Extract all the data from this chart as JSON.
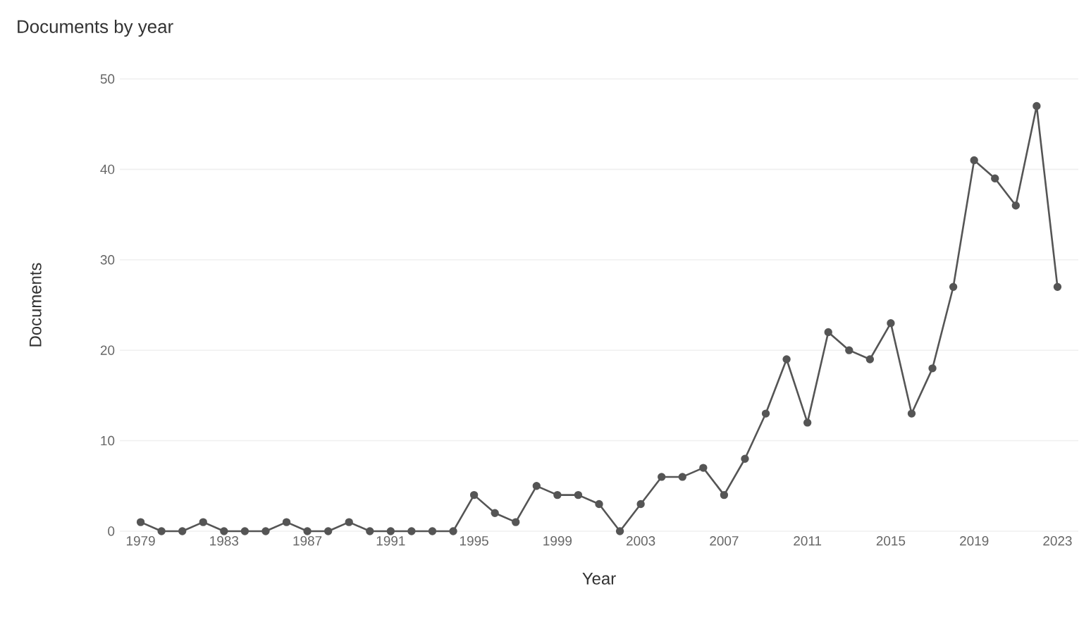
{
  "chart_data": {
    "type": "line",
    "title": "Documents by year",
    "xlabel": "Year",
    "ylabel": "Documents",
    "x": [
      1979,
      1980,
      1981,
      1982,
      1983,
      1984,
      1985,
      1986,
      1987,
      1988,
      1989,
      1990,
      1991,
      1992,
      1993,
      1994,
      1995,
      1996,
      1997,
      1998,
      1999,
      2000,
      2001,
      2002,
      2003,
      2004,
      2005,
      2006,
      2007,
      2008,
      2009,
      2010,
      2011,
      2012,
      2013,
      2014,
      2015,
      2016,
      2017,
      2018,
      2019,
      2020,
      2021,
      2022,
      2023
    ],
    "series": [
      {
        "color": "#555555",
        "values": [
          1,
          0,
          0,
          1,
          0,
          0,
          0,
          1,
          0,
          0,
          1,
          0,
          0,
          0,
          0,
          0,
          4,
          2,
          1,
          5,
          4,
          4,
          3,
          0,
          3,
          6,
          6,
          7,
          4,
          8,
          13,
          19,
          12,
          22,
          20,
          19,
          23,
          13,
          18,
          27,
          41,
          39,
          36,
          47,
          27
        ]
      }
    ],
    "xlim": [
      1978,
      2024
    ],
    "ylim": [
      0,
      50
    ],
    "xticks": [
      1979,
      1983,
      1987,
      1991,
      1995,
      1999,
      2003,
      2007,
      2011,
      2015,
      2019,
      2023
    ],
    "yticks": [
      0,
      10,
      20,
      30,
      40,
      50
    ],
    "grid": "y",
    "marker": "circle",
    "line_style": "solid"
  }
}
